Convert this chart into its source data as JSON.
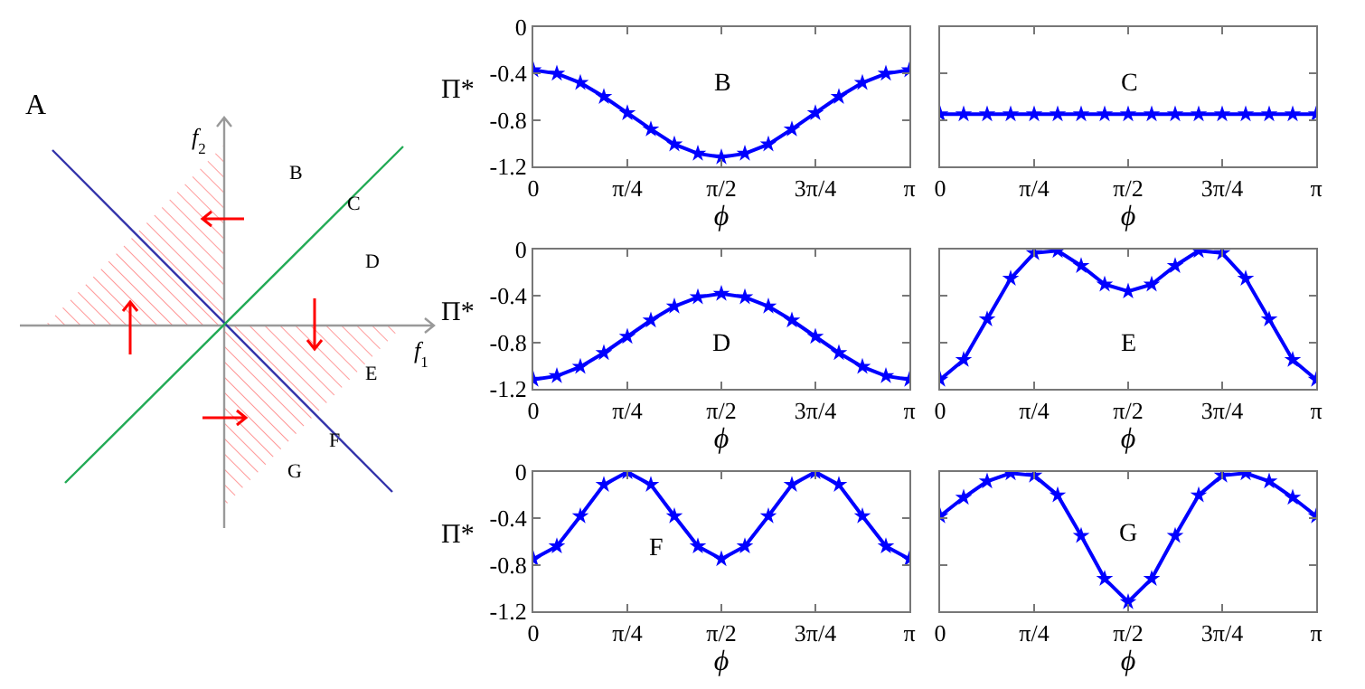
{
  "chart_data": [
    {
      "type": "other",
      "annotations": [
        "A",
        "B",
        "C",
        "D",
        "E",
        "F",
        "G",
        "f$_{1}$",
        "f$_{2}$"
      ]
    },
    {
      "type": "line",
      "x": [
        0,
        0.1963,
        0.3927,
        0.589,
        0.7854,
        0.9817,
        1.1781,
        1.3744,
        1.5708,
        1.7671,
        1.9635,
        2.1598,
        2.3562,
        2.5525,
        2.7489,
        2.9452,
        3.1416
      ],
      "xlabel": "ϕ",
      "ylabel": "Π*",
      "annotations": [
        "B"
      ],
      "marker": "star",
      "grid": false,
      "xlim": [
        0,
        3.1416
      ],
      "ylim": [
        -1.2,
        0
      ],
      "xticks": [
        {
          "value": 0,
          "label": "0"
        },
        {
          "value": 0.7854,
          "label": "π/4"
        },
        {
          "value": 1.5708,
          "label": "π/2"
        },
        {
          "value": 2.3562,
          "label": "3π/4"
        },
        {
          "value": 3.1416,
          "label": "π"
        }
      ],
      "yticks": [
        0,
        -0.4,
        -0.8,
        -1.2
      ],
      "series": [
        {
          "color": "#0000ff",
          "values": [
            -0.37,
            -0.4,
            -0.48,
            -0.6,
            -0.74,
            -0.88,
            -1.01,
            -1.09,
            -1.12,
            -1.09,
            -1.01,
            -0.88,
            -0.74,
            -0.6,
            -0.48,
            -0.4,
            -0.37
          ]
        }
      ]
    },
    {
      "type": "line",
      "x": [
        0,
        0.1963,
        0.3927,
        0.589,
        0.7854,
        0.9817,
        1.1781,
        1.3744,
        1.5708,
        1.7671,
        1.9635,
        2.1598,
        2.3562,
        2.5525,
        2.7489,
        2.9452,
        3.1416
      ],
      "xlabel": "ϕ",
      "annotations": [
        "C"
      ],
      "marker": "star",
      "grid": false,
      "tick_labels": "x",
      "xlim": [
        0,
        3.1416
      ],
      "ylim": [
        -1.2,
        0
      ],
      "xticks": [
        {
          "value": 0,
          "label": "0"
        },
        {
          "value": 0.7854,
          "label": "π/4"
        },
        {
          "value": 1.5708,
          "label": "π/2"
        },
        {
          "value": 2.3562,
          "label": "3π/4"
        },
        {
          "value": 3.1416,
          "label": "π"
        }
      ],
      "yticks": [
        0,
        -0.4,
        -0.8,
        -1.2
      ],
      "series": [
        {
          "color": "#0000ff",
          "values": [
            -0.75,
            -0.75,
            -0.75,
            -0.75,
            -0.75,
            -0.75,
            -0.75,
            -0.75,
            -0.75,
            -0.75,
            -0.75,
            -0.75,
            -0.75,
            -0.75,
            -0.75,
            -0.75,
            -0.75
          ]
        }
      ]
    },
    {
      "type": "line",
      "x": [
        0,
        0.1963,
        0.3927,
        0.589,
        0.7854,
        0.9817,
        1.1781,
        1.3744,
        1.5708,
        1.7671,
        1.9635,
        2.1598,
        2.3562,
        2.5525,
        2.7489,
        2.9452,
        3.1416
      ],
      "xlabel": "ϕ",
      "ylabel": "Π*",
      "annotations": [
        "D"
      ],
      "marker": "star",
      "grid": false,
      "xlim": [
        0,
        3.1416
      ],
      "ylim": [
        -1.2,
        0
      ],
      "xticks": [
        {
          "value": 0,
          "label": "0"
        },
        {
          "value": 0.7854,
          "label": "π/4"
        },
        {
          "value": 1.5708,
          "label": "π/2"
        },
        {
          "value": 2.3562,
          "label": "3π/4"
        },
        {
          "value": 3.1416,
          "label": "π"
        }
      ],
      "yticks": [
        0,
        -0.4,
        -0.8,
        -1.2
      ],
      "series": [
        {
          "color": "#0000ff",
          "values": [
            -1.12,
            -1.09,
            -1.01,
            -0.89,
            -0.75,
            -0.61,
            -0.49,
            -0.41,
            -0.38,
            -0.41,
            -0.49,
            -0.61,
            -0.75,
            -0.89,
            -1.01,
            -1.09,
            -1.12
          ]
        }
      ]
    },
    {
      "type": "line",
      "x": [
        0,
        0.1963,
        0.3927,
        0.589,
        0.7854,
        0.9817,
        1.1781,
        1.3744,
        1.5708,
        1.7671,
        1.9635,
        2.1598,
        2.3562,
        2.5525,
        2.7489,
        2.9452,
        3.1416
      ],
      "xlabel": "ϕ",
      "annotations": [
        "E"
      ],
      "marker": "star",
      "grid": false,
      "tick_labels": "x",
      "xlim": [
        0,
        3.1416
      ],
      "ylim": [
        -1.2,
        0
      ],
      "xticks": [
        {
          "value": 0,
          "label": "0"
        },
        {
          "value": 0.7854,
          "label": "π/4"
        },
        {
          "value": 1.5708,
          "label": "π/2"
        },
        {
          "value": 2.3562,
          "label": "3π/4"
        },
        {
          "value": 3.1416,
          "label": "π"
        }
      ],
      "yticks": [
        0,
        -0.4,
        -0.8,
        -1.2
      ],
      "series": [
        {
          "color": "#0000ff",
          "values": [
            -1.12,
            -0.95,
            -0.6,
            -0.25,
            -0.03,
            -0.01,
            -0.14,
            -0.3,
            -0.36,
            -0.3,
            -0.14,
            -0.01,
            -0.03,
            -0.25,
            -0.6,
            -0.95,
            -1.12
          ]
        }
      ]
    },
    {
      "type": "line",
      "x": [
        0,
        0.1963,
        0.3927,
        0.589,
        0.7854,
        0.9817,
        1.1781,
        1.3744,
        1.5708,
        1.7671,
        1.9635,
        2.1598,
        2.3562,
        2.5525,
        2.7489,
        2.9452,
        3.1416
      ],
      "xlabel": "ϕ",
      "ylabel": "Π*",
      "annotations": [
        "F"
      ],
      "marker": "star",
      "grid": false,
      "xlim": [
        0,
        3.1416
      ],
      "ylim": [
        -1.2,
        0
      ],
      "xticks": [
        {
          "value": 0,
          "label": "0"
        },
        {
          "value": 0.7854,
          "label": "π/4"
        },
        {
          "value": 1.5708,
          "label": "π/2"
        },
        {
          "value": 2.3562,
          "label": "3π/4"
        },
        {
          "value": 3.1416,
          "label": "π"
        }
      ],
      "yticks": [
        0,
        -0.4,
        -0.8,
        -1.2
      ],
      "series": [
        {
          "color": "#0000ff",
          "values": [
            -0.75,
            -0.64,
            -0.38,
            -0.11,
            0,
            -0.11,
            -0.38,
            -0.64,
            -0.75,
            -0.64,
            -0.38,
            -0.11,
            0,
            -0.11,
            -0.38,
            -0.64,
            -0.75
          ]
        }
      ]
    },
    {
      "type": "line",
      "x": [
        0,
        0.1963,
        0.3927,
        0.589,
        0.7854,
        0.9817,
        1.1781,
        1.3744,
        1.5708,
        1.7671,
        1.9635,
        2.1598,
        2.3562,
        2.5525,
        2.7489,
        2.9452,
        3.1416
      ],
      "xlabel": "ϕ",
      "annotations": [
        "G"
      ],
      "marker": "star",
      "grid": false,
      "tick_labels": "x",
      "xlim": [
        0,
        3.1416
      ],
      "ylim": [
        -1.2,
        0
      ],
      "xticks": [
        {
          "value": 0,
          "label": "0"
        },
        {
          "value": 0.7854,
          "label": "π/4"
        },
        {
          "value": 1.5708,
          "label": "π/2"
        },
        {
          "value": 2.3562,
          "label": "3π/4"
        },
        {
          "value": 3.1416,
          "label": "π"
        }
      ],
      "yticks": [
        0,
        -0.4,
        -0.8,
        -1.2
      ],
      "series": [
        {
          "color": "#0000ff",
          "values": [
            -0.38,
            -0.22,
            -0.08,
            -0.01,
            -0.03,
            -0.2,
            -0.55,
            -0.92,
            -1.12,
            -0.92,
            -0.55,
            -0.2,
            -0.03,
            -0.01,
            -0.08,
            -0.22,
            -0.38
          ]
        }
      ]
    }
  ]
}
